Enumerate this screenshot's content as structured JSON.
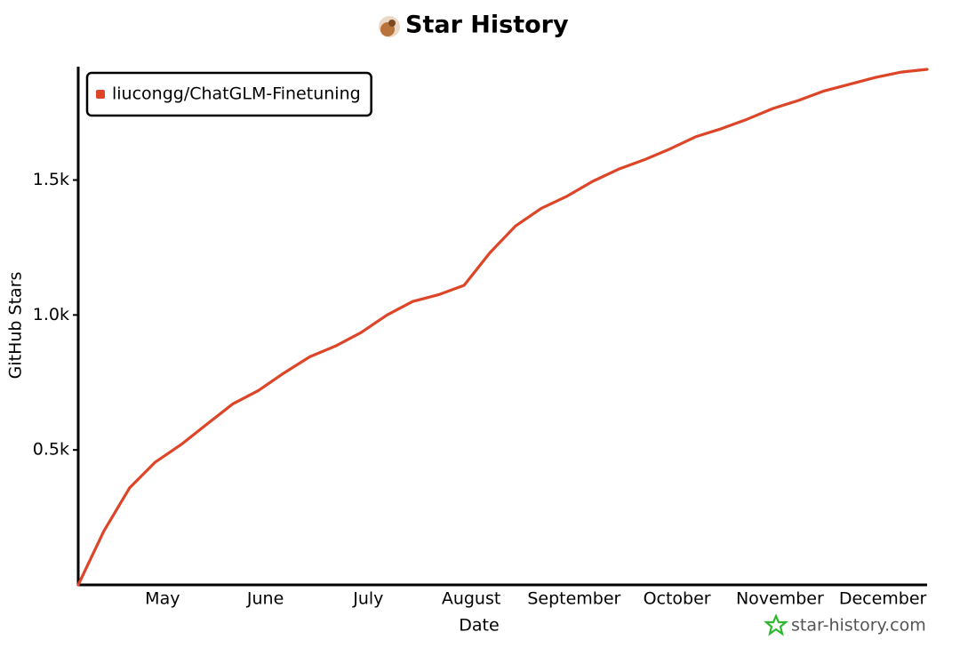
{
  "chart_data": {
    "type": "line",
    "title": "Star History",
    "xlabel": "Date",
    "ylabel": "GitHub Stars",
    "watermark": "star-history.com",
    "categories": [
      null,
      null,
      null,
      "May",
      null,
      null,
      null,
      "June",
      null,
      null,
      null,
      "July",
      null,
      null,
      null,
      "August",
      null,
      null,
      null,
      "September",
      null,
      null,
      null,
      "October",
      null,
      null,
      null,
      "November",
      null,
      null,
      null,
      "December",
      null,
      null
    ],
    "series": [
      {
        "name": "liucongg/ChatGLM-Finetuning",
        "color": "#dd4528",
        "values": [
          0,
          200,
          360,
          455,
          520,
          595,
          670,
          720,
          785,
          845,
          885,
          935,
          1000,
          1050,
          1075,
          1110,
          1230,
          1330,
          1395,
          1440,
          1495,
          1540,
          1575,
          1615,
          1660,
          1690,
          1725,
          1765,
          1795,
          1830,
          1855,
          1880,
          1900,
          1910
        ]
      }
    ],
    "ylim": [
      0,
      1920
    ],
    "yticks": [
      {
        "value": 500,
        "label": "0.5k"
      },
      {
        "value": 1000,
        "label": "1.0k"
      },
      {
        "value": 1500,
        "label": "1.5k"
      }
    ],
    "legend": "top-left",
    "grid": false
  }
}
